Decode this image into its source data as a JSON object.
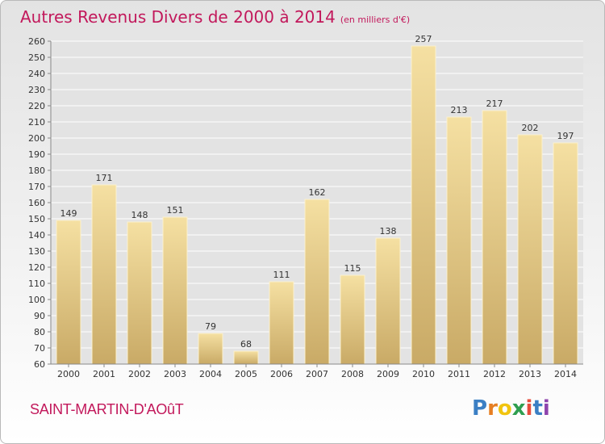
{
  "chart_data": {
    "type": "bar",
    "title": "Autres Revenus Divers de 2000 à 2014",
    "subtitle": "(en milliers d'€)",
    "categories": [
      "2000",
      "2001",
      "2002",
      "2003",
      "2004",
      "2005",
      "2006",
      "2007",
      "2008",
      "2009",
      "2010",
      "2011",
      "2012",
      "2013",
      "2014"
    ],
    "values": [
      149,
      171,
      148,
      151,
      79,
      68,
      111,
      162,
      115,
      138,
      257,
      213,
      217,
      202,
      197
    ],
    "ylim": [
      60,
      260
    ],
    "yticks": [
      60,
      70,
      80,
      90,
      100,
      110,
      120,
      130,
      140,
      150,
      160,
      170,
      180,
      190,
      200,
      210,
      220,
      230,
      240,
      250,
      260
    ],
    "grid": true,
    "bar_color": "#e6cd86"
  },
  "commune": "SAINT-MARTIN-D'AOûT",
  "logo": {
    "letters": [
      "P",
      "r",
      "o",
      "x",
      "i",
      "t",
      "i"
    ],
    "colors": [
      "#3b7fc4",
      "#e67e22",
      "#f1c40f",
      "#2e9e4f",
      "#e74c3c",
      "#3b7fc4",
      "#8e44ad"
    ]
  }
}
